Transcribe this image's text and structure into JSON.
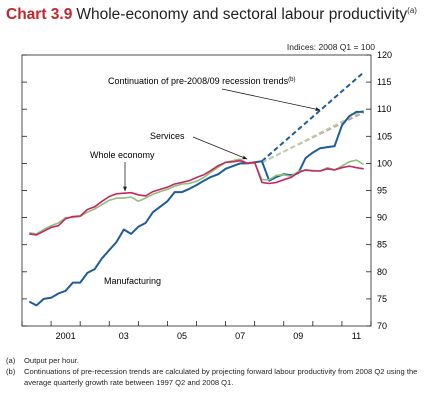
{
  "title": {
    "number": "Chart 3.9",
    "text": "Whole-economy and sectoral labour productivity",
    "note_ref": "(a)"
  },
  "units": "Indices: 2008 Q1 = 100",
  "footnotes": [
    {
      "mark": "(a)",
      "text": "Output per hour."
    },
    {
      "mark": "(b)",
      "text": "Continuations of pre-recession trends are calculated by projecting forward labour productivity from 2008 Q2 using the average quarterly growth rate between 1997 Q2 and 2008 Q1."
    }
  ],
  "colors": {
    "manufacturing": "#1f5c9a",
    "whole_economy": "#c7265f",
    "services": "#8cc07a",
    "trend_manufacturing": "#1f5c9a",
    "trend_whole_economy": "#c99a9a",
    "trend_services": "#b5d2ab",
    "axis": "#231f20"
  },
  "chart_data": {
    "type": "line",
    "xlabel": "",
    "ylabel": "",
    "x_tick_labels": [
      "2001",
      "03",
      "05",
      "07",
      "09",
      "11"
    ],
    "y_ticks": [
      70,
      75,
      80,
      85,
      90,
      95,
      100,
      105,
      110,
      115,
      120
    ],
    "ylim": [
      70,
      120
    ],
    "xlim": [
      "2000 Q1",
      "2012 Q1"
    ],
    "grid": false,
    "x": [
      "2000 Q2",
      "2000 Q3",
      "2000 Q4",
      "2001 Q1",
      "2001 Q2",
      "2001 Q3",
      "2001 Q4",
      "2002 Q1",
      "2002 Q2",
      "2002 Q3",
      "2002 Q4",
      "2003 Q1",
      "2003 Q2",
      "2003 Q3",
      "2003 Q4",
      "2004 Q1",
      "2004 Q2",
      "2004 Q3",
      "2004 Q4",
      "2005 Q1",
      "2005 Q2",
      "2005 Q3",
      "2005 Q4",
      "2006 Q1",
      "2006 Q2",
      "2006 Q3",
      "2006 Q4",
      "2007 Q1",
      "2007 Q2",
      "2007 Q3",
      "2007 Q4",
      "2008 Q1",
      "2008 Q2",
      "2008 Q3",
      "2008 Q4",
      "2009 Q1",
      "2009 Q2",
      "2009 Q3",
      "2009 Q4",
      "2010 Q1",
      "2010 Q2",
      "2010 Q3",
      "2010 Q4",
      "2011 Q1",
      "2011 Q2",
      "2011 Q3",
      "2011 Q4"
    ],
    "series": [
      {
        "name": "Manufacturing",
        "values": [
          74.5,
          73.8,
          75.0,
          75.2,
          76.0,
          76.5,
          78.0,
          78.0,
          79.8,
          80.5,
          82.5,
          84.0,
          85.5,
          87.8,
          87.0,
          88.3,
          89.0,
          91.0,
          92.0,
          93.0,
          94.7,
          94.7,
          95.3,
          96.0,
          96.8,
          97.5,
          98.0,
          99.0,
          99.5,
          100.0,
          100.0,
          100.2,
          100.4,
          96.8,
          97.5,
          98.0,
          97.8,
          98.2,
          101.0,
          102.0,
          102.8,
          103.0,
          103.2,
          107.0,
          108.7,
          109.5,
          109.5
        ]
      },
      {
        "name": "Whole economy",
        "values": [
          87.0,
          86.8,
          87.5,
          88.2,
          88.5,
          89.8,
          90.2,
          90.3,
          91.5,
          92.0,
          93.0,
          93.9,
          94.4,
          94.5,
          94.6,
          94.2,
          94.0,
          94.8,
          95.2,
          95.6,
          96.2,
          96.5,
          96.8,
          97.4,
          97.9,
          98.7,
          99.6,
          100.2,
          100.3,
          100.5,
          100.0,
          100.2,
          96.5,
          96.3,
          96.5,
          97.0,
          97.4,
          98.3,
          98.8,
          98.6,
          98.6,
          99.0,
          98.8,
          99.2,
          99.5,
          99.2,
          99.0
        ]
      },
      {
        "name": "Services",
        "values": [
          87.2,
          87.0,
          87.8,
          88.5,
          89.0,
          90.0,
          90.0,
          90.2,
          91.0,
          91.6,
          92.4,
          93.2,
          93.6,
          93.6,
          93.8,
          93.0,
          93.6,
          94.3,
          94.8,
          95.2,
          95.8,
          96.2,
          96.3,
          96.7,
          97.4,
          98.4,
          99.3,
          100.2,
          100.5,
          100.8,
          100.0,
          100.1,
          97.0,
          97.0,
          97.8,
          97.9,
          97.6,
          98.5,
          98.8,
          98.7,
          98.6,
          99.2,
          98.8,
          99.5,
          100.3,
          100.6,
          99.8
        ]
      }
    ],
    "trend_series": [
      {
        "name": "Manufacturing trend",
        "x": [
          "2008 Q2",
          "2011 Q4"
        ],
        "values": [
          100.4,
          116.8
        ]
      },
      {
        "name": "Whole economy trend",
        "x": [
          "2008 Q2",
          "2011 Q4"
        ],
        "values": [
          100.2,
          109.4
        ]
      },
      {
        "name": "Services trend",
        "x": [
          "2008 Q2",
          "2011 Q4"
        ],
        "values": [
          100.1,
          109.8
        ]
      }
    ],
    "annotations": [
      {
        "text": "Continuation of pre-2008/09 recession trends",
        "ref": "(b)"
      },
      {
        "text": "Services"
      },
      {
        "text": "Whole economy"
      },
      {
        "text": "Manufacturing"
      }
    ]
  }
}
